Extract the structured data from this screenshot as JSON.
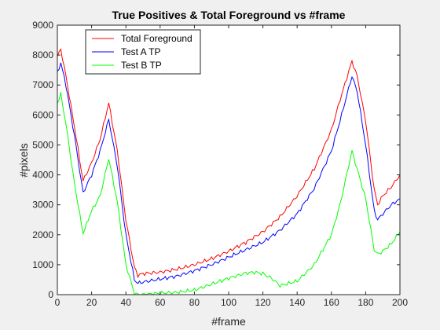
{
  "chart_data": {
    "type": "line",
    "title": "True Positives & Total Foreground vs #frame",
    "xlabel": "#frame",
    "ylabel": "#pixels",
    "xlim": [
      0,
      200
    ],
    "ylim": [
      0,
      9000
    ],
    "xticks": [
      0,
      20,
      40,
      60,
      80,
      100,
      120,
      140,
      160,
      180,
      200
    ],
    "yticks": [
      0,
      1000,
      2000,
      3000,
      4000,
      5000,
      6000,
      7000,
      8000,
      9000
    ],
    "grid": false,
    "legend_position": "top-left",
    "series": [
      {
        "name": "Total Foreground",
        "color": "#ff0000",
        "x": [
          0,
          2,
          5,
          10,
          15,
          20,
          25,
          30,
          35,
          40,
          45,
          47,
          50,
          60,
          70,
          80,
          90,
          100,
          110,
          120,
          130,
          140,
          150,
          160,
          165,
          172,
          175,
          180,
          185,
          187,
          190,
          195,
          200
        ],
        "y": [
          7950,
          8200,
          7300,
          5600,
          3800,
          4400,
          5200,
          6400,
          4800,
          2500,
          900,
          650,
          700,
          750,
          850,
          1000,
          1200,
          1450,
          1750,
          2100,
          2600,
          3300,
          4200,
          5500,
          6500,
          7800,
          7300,
          5800,
          3500,
          3000,
          3300,
          3600,
          4000
        ]
      },
      {
        "name": "Test A TP",
        "color": "#0000ff",
        "x": [
          0,
          2,
          5,
          10,
          15,
          20,
          25,
          30,
          35,
          40,
          45,
          47,
          50,
          60,
          70,
          80,
          90,
          100,
          110,
          120,
          130,
          140,
          150,
          160,
          165,
          172,
          175,
          180,
          185,
          187,
          190,
          195,
          200
        ],
        "y": [
          7400,
          7750,
          7000,
          5300,
          3400,
          4000,
          4800,
          5850,
          4300,
          2000,
          500,
          380,
          420,
          520,
          620,
          800,
          1000,
          1250,
          1500,
          1750,
          2150,
          2700,
          3550,
          4800,
          5800,
          7300,
          6800,
          5000,
          2800,
          2500,
          2700,
          3000,
          3200
        ]
      },
      {
        "name": "Test B TP",
        "color": "#00ff00",
        "x": [
          0,
          2,
          5,
          10,
          15,
          20,
          25,
          30,
          35,
          40,
          45,
          47,
          50,
          60,
          70,
          80,
          90,
          100,
          110,
          115,
          120,
          125,
          130,
          140,
          150,
          160,
          165,
          172,
          175,
          180,
          185,
          187,
          190,
          195,
          200
        ],
        "y": [
          6400,
          6700,
          5700,
          3700,
          2050,
          2800,
          3300,
          4550,
          3100,
          1000,
          50,
          0,
          0,
          50,
          80,
          150,
          350,
          550,
          720,
          750,
          700,
          550,
          300,
          450,
          1000,
          2000,
          3000,
          4800,
          4200,
          3200,
          1500,
          1350,
          1450,
          1700,
          2100
        ]
      }
    ]
  }
}
